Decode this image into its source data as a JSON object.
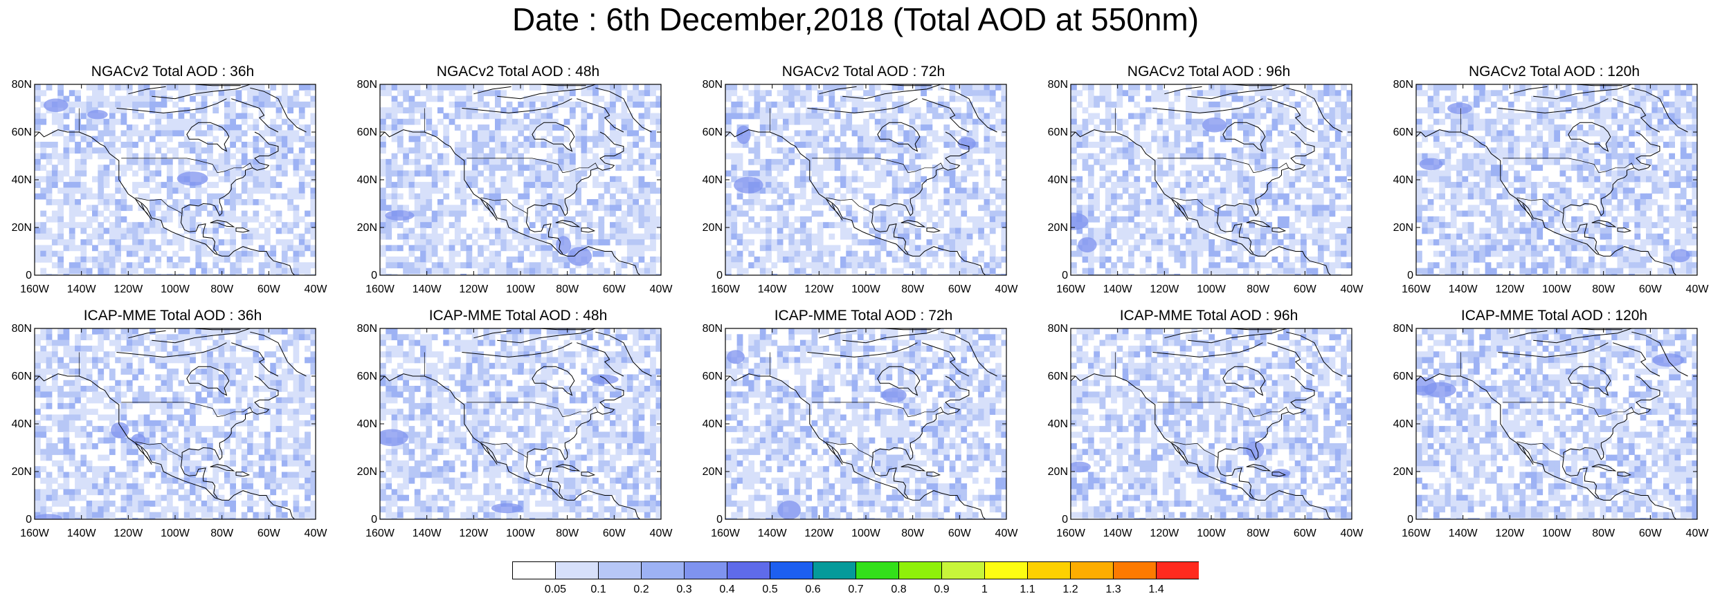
{
  "title": "Date : 6th December,2018 (Total AOD at 550nm)",
  "panels": [
    {
      "title": "NGACv2 Total AOD : 36h"
    },
    {
      "title": "NGACv2 Total AOD : 48h"
    },
    {
      "title": "NGACv2 Total AOD : 72h"
    },
    {
      "title": "NGACv2 Total AOD : 96h"
    },
    {
      "title": "NGACv2 Total AOD : 120h"
    },
    {
      "title": "ICAP-MME Total AOD : 36h"
    },
    {
      "title": "ICAP-MME Total AOD : 48h"
    },
    {
      "title": "ICAP-MME Total AOD : 72h"
    },
    {
      "title": "ICAP-MME Total AOD : 96h"
    },
    {
      "title": "ICAP-MME Total AOD : 120h"
    }
  ],
  "axes": {
    "lat_labels": [
      "0",
      "20N",
      "40N",
      "60N",
      "80N"
    ],
    "lon_labels": [
      "160W",
      "140W",
      "120W",
      "100W",
      "80W",
      "60W",
      "40W"
    ]
  },
  "colorbar": {
    "colors": [
      "#ffffff",
      "#d7e0fa",
      "#b7c7f6",
      "#9db2f4",
      "#7f93ef",
      "#5f6bea",
      "#1d5ff0",
      "#059a9a",
      "#33e01a",
      "#8ff00a",
      "#c8f53a",
      "#fdfd12",
      "#fdd000",
      "#fdad00",
      "#fd7a00",
      "#ff2a1e"
    ],
    "labels": [
      "0.05",
      "0.1",
      "0.2",
      "0.3",
      "0.4",
      "0.5",
      "0.6",
      "0.7",
      "0.8",
      "0.9",
      "1",
      "1.1",
      "1.2",
      "1.3",
      "1.4"
    ]
  }
}
